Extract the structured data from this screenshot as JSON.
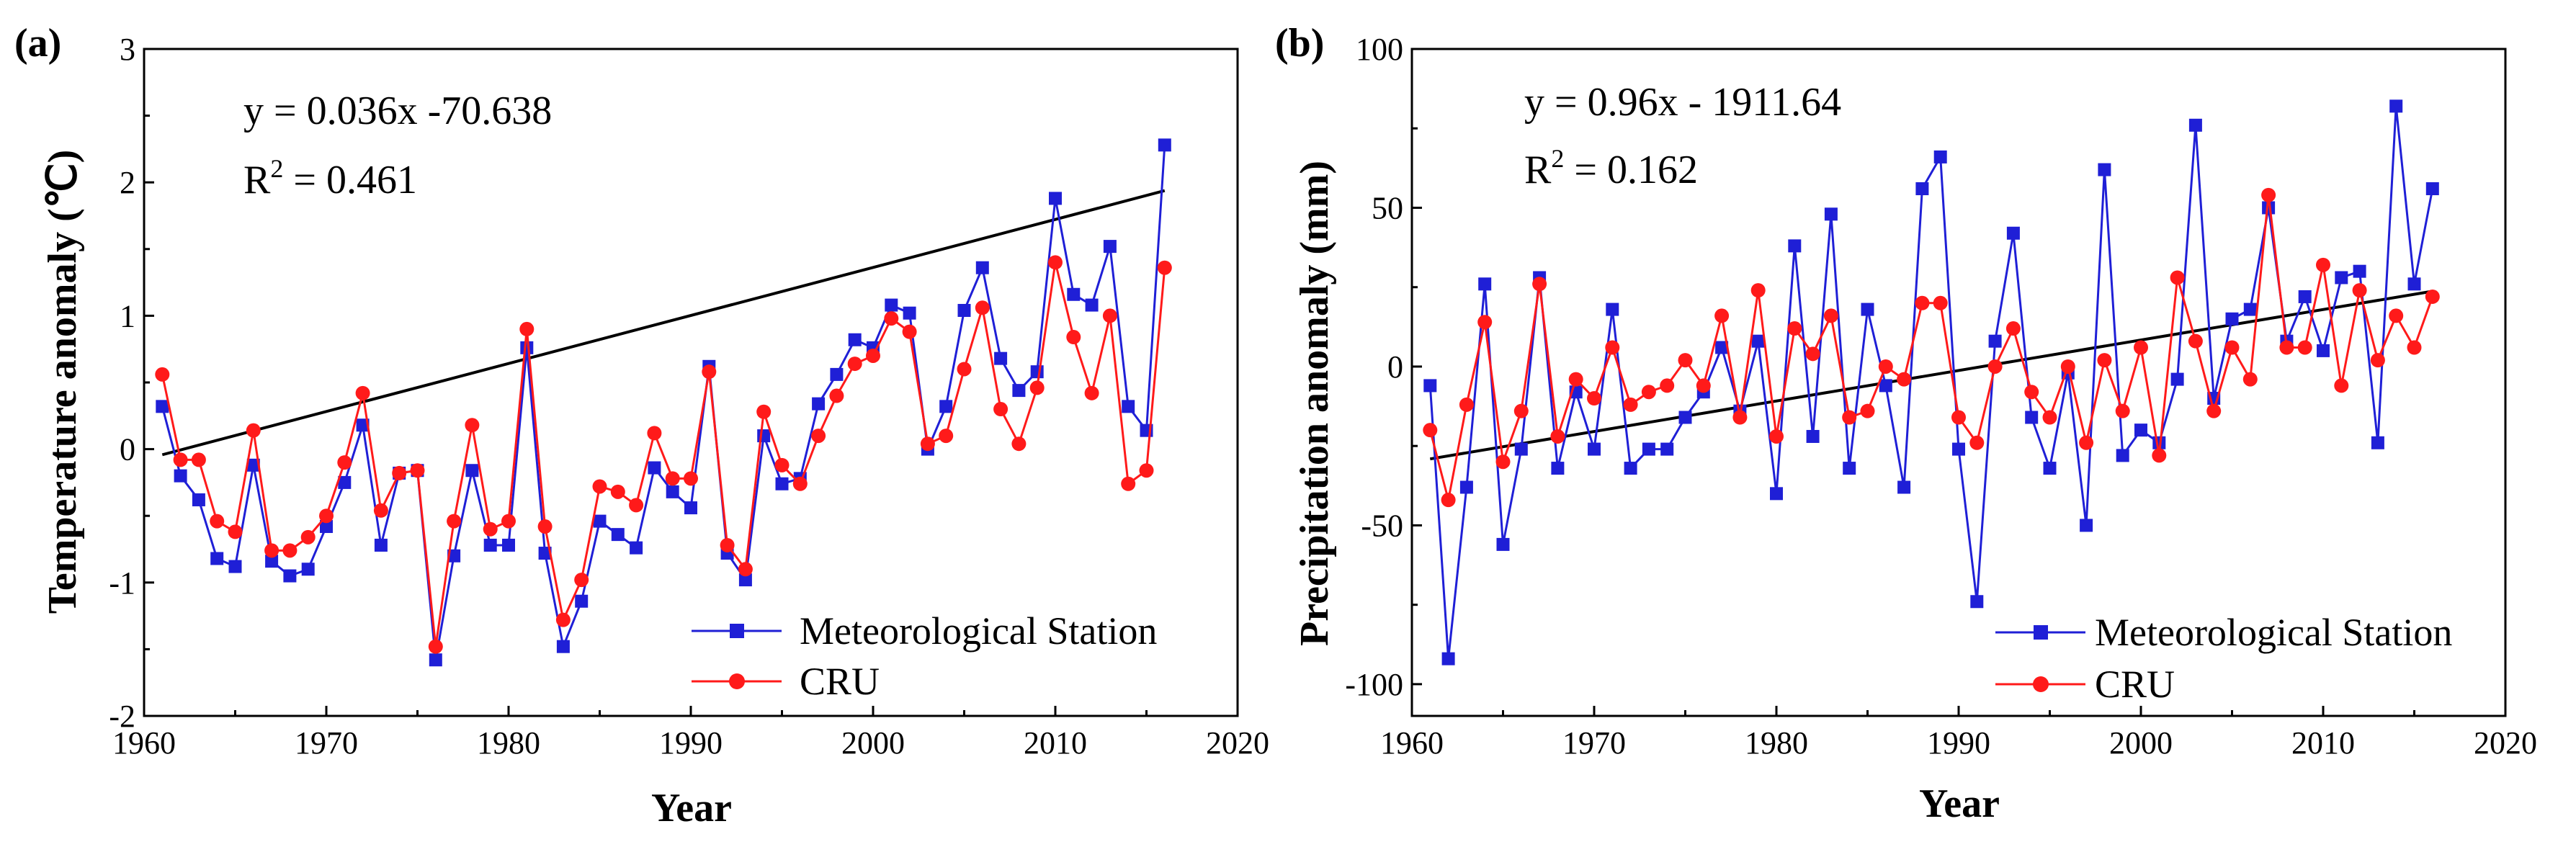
{
  "chart_data": [
    {
      "id": "a",
      "type": "line",
      "panel_label": "(a)",
      "title": "",
      "xlabel": "Year",
      "ylabel": "Temperature anomaly (℃)",
      "xlim": [
        1960,
        2020
      ],
      "ylim": [
        -2,
        3
      ],
      "xticks": [
        "1960",
        "1970",
        "1980",
        "1990",
        "2000",
        "2010",
        "2020"
      ],
      "yticks": [
        "-2",
        "-1",
        "0",
        "1",
        "2",
        "3"
      ],
      "annotation": {
        "equation": "y = 0.036x -70.638",
        "r2_prefix": "R",
        "r2_exp": "2",
        "r2_value": " = 0.461"
      },
      "legend": {
        "position": "bottom-right",
        "entries": [
          "Meteorological Station",
          "CRU"
        ]
      },
      "trend": {
        "slope": 0.036,
        "intercept": -70.638,
        "x_range": [
          1961,
          2016
        ],
        "color": "#000000"
      },
      "x": [
        1961,
        1962,
        1963,
        1964,
        1965,
        1966,
        1967,
        1968,
        1969,
        1970,
        1971,
        1972,
        1973,
        1974,
        1975,
        1976,
        1977,
        1978,
        1979,
        1980,
        1981,
        1982,
        1983,
        1984,
        1985,
        1986,
        1987,
        1988,
        1989,
        1990,
        1991,
        1992,
        1993,
        1994,
        1995,
        1996,
        1997,
        1998,
        1999,
        2000,
        2001,
        2002,
        2003,
        2004,
        2005,
        2006,
        2007,
        2008,
        2009,
        2010,
        2011,
        2012,
        2013,
        2014,
        2015,
        2016
      ],
      "series": [
        {
          "name": "Meteorological Station",
          "color": "#1f1fd6",
          "marker": "square",
          "values": [
            0.32,
            -0.2,
            -0.38,
            -0.82,
            -0.88,
            -0.12,
            -0.84,
            -0.95,
            -0.9,
            -0.58,
            -0.25,
            0.18,
            -0.72,
            -0.18,
            -0.16,
            -1.58,
            -0.8,
            -0.16,
            -0.72,
            -0.72,
            0.76,
            -0.78,
            -1.48,
            -1.14,
            -0.54,
            -0.64,
            -0.74,
            -0.14,
            -0.32,
            -0.44,
            0.62,
            -0.78,
            -0.98,
            0.1,
            -0.26,
            -0.22,
            0.34,
            0.56,
            0.82,
            0.76,
            1.08,
            1.02,
            0.0,
            0.32,
            1.04,
            1.36,
            0.68,
            0.44,
            0.58,
            1.88,
            1.16,
            1.08,
            1.52,
            0.32,
            0.14,
            2.28
          ]
        },
        {
          "name": "CRU",
          "color": "#ff1a1a",
          "marker": "circle",
          "values": [
            0.56,
            -0.08,
            -0.08,
            -0.54,
            -0.62,
            0.14,
            -0.76,
            -0.76,
            -0.66,
            -0.5,
            -0.1,
            0.42,
            -0.46,
            -0.18,
            -0.16,
            -1.48,
            -0.54,
            0.18,
            -0.6,
            -0.54,
            0.9,
            -0.58,
            -1.28,
            -0.98,
            -0.28,
            -0.32,
            -0.42,
            0.12,
            -0.22,
            -0.22,
            0.58,
            -0.72,
            -0.9,
            0.28,
            -0.12,
            -0.26,
            0.1,
            0.4,
            0.64,
            0.7,
            0.98,
            0.88,
            0.04,
            0.1,
            0.6,
            1.06,
            0.3,
            0.04,
            0.46,
            1.4,
            0.84,
            0.42,
            1.0,
            -0.26,
            -0.16,
            1.36
          ]
        }
      ]
    },
    {
      "id": "b",
      "type": "line",
      "panel_label": "(b)",
      "title": "",
      "xlabel": "Year",
      "ylabel": "Precipitation anomaly (mm)",
      "xlim": [
        1960,
        2020
      ],
      "ylim": [
        -110,
        100
      ],
      "xticks": [
        "1960",
        "1970",
        "1980",
        "1990",
        "2000",
        "2010",
        "2020"
      ],
      "ytick_values": [
        -100,
        -50,
        0,
        50,
        100
      ],
      "yticks": [
        "-100",
        "-50",
        "0",
        "50",
        "100"
      ],
      "annotation": {
        "equation": "y = 0.96x - 1911.64",
        "r2_prefix": "R",
        "r2_exp": "2",
        "r2_value": " = 0.162"
      },
      "legend": {
        "position": "bottom-right",
        "entries": [
          "Meteorological Station",
          "CRU"
        ]
      },
      "trend": {
        "slope": 0.96,
        "intercept": -1911.64,
        "x_range": [
          1961,
          2016
        ],
        "color": "#000000"
      },
      "x": [
        1961,
        1962,
        1963,
        1964,
        1965,
        1966,
        1967,
        1968,
        1969,
        1970,
        1971,
        1972,
        1973,
        1974,
        1975,
        1976,
        1977,
        1978,
        1979,
        1980,
        1981,
        1982,
        1983,
        1984,
        1985,
        1986,
        1987,
        1988,
        1989,
        1990,
        1991,
        1992,
        1993,
        1994,
        1995,
        1996,
        1997,
        1998,
        1999,
        2000,
        2001,
        2002,
        2003,
        2004,
        2005,
        2006,
        2007,
        2008,
        2009,
        2010,
        2011,
        2012,
        2013,
        2014,
        2015,
        2016
      ],
      "series": [
        {
          "name": "Meteorological Station",
          "color": "#1f1fd6",
          "marker": "square",
          "values": [
            -6,
            -92,
            -38,
            26,
            -56,
            -26,
            28,
            -32,
            -8,
            -26,
            18,
            -32,
            -26,
            -26,
            -16,
            -8,
            6,
            -14,
            8,
            -40,
            38,
            -22,
            48,
            -32,
            18,
            -6,
            -38,
            56,
            66,
            -26,
            -74,
            8,
            42,
            -16,
            -32,
            -2,
            -50,
            62,
            -28,
            -20,
            -24,
            -4,
            76,
            -10,
            15,
            18,
            50,
            8,
            22,
            5,
            28,
            30,
            -24,
            82,
            26,
            56
          ]
        },
        {
          "name": "CRU",
          "color": "#ff1a1a",
          "marker": "circle",
          "values": [
            -20,
            -42,
            -12,
            14,
            -30,
            -14,
            26,
            -22,
            -4,
            -10,
            6,
            -12,
            -8,
            -6,
            2,
            -6,
            16,
            -16,
            24,
            -22,
            12,
            4,
            16,
            -16,
            -14,
            0,
            -4,
            20,
            20,
            -16,
            -24,
            0,
            12,
            -8,
            -16,
            0,
            -24,
            2,
            -14,
            6,
            -28,
            28,
            8,
            -14,
            6,
            -4,
            54,
            6,
            6,
            32,
            -6,
            24,
            2,
            16,
            6,
            22
          ]
        }
      ]
    }
  ]
}
